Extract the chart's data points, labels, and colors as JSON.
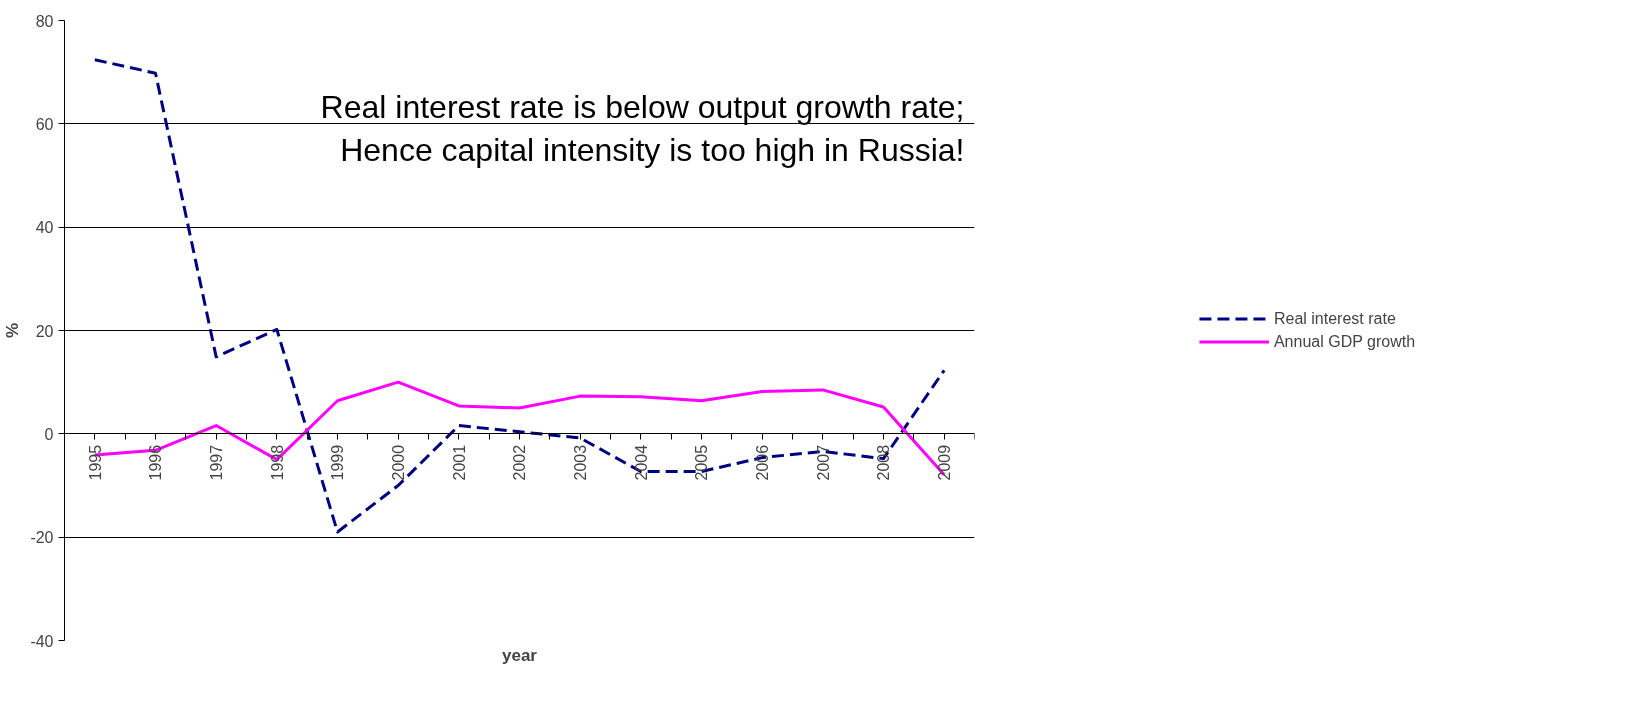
{
  "chart_data": {
    "type": "line",
    "xlabel": "year",
    "ylabel": "%",
    "categories": [
      "1995",
      "1996",
      "1997",
      "1998",
      "1999",
      "2000",
      "2001",
      "2002",
      "2003",
      "2004",
      "2005",
      "2006",
      "2007",
      "2008",
      "2009"
    ],
    "series": [
      {
        "name": "Real interest rate",
        "color": "#000080",
        "line_style": "dashed",
        "values": [
          72.4,
          69.8,
          14.9,
          20.2,
          -19,
          -10,
          1.6,
          0.4,
          -0.8,
          -7.3,
          -7.3,
          -4.6,
          -3.4,
          -4.8,
          12.3
        ]
      },
      {
        "name": "Annual GDP growth",
        "color": "#ff00ff",
        "line_style": "solid",
        "values": [
          -4.1,
          -3.2,
          1.6,
          -5.0,
          6.4,
          10.0,
          5.4,
          5.0,
          7.3,
          7.2,
          6.4,
          8.2,
          8.5,
          5.2,
          -7.9
        ]
      }
    ],
    "ylim": [
      -40,
      80
    ],
    "yticks": [
      -40,
      -20,
      0,
      20,
      40,
      60,
      80
    ],
    "grid": "y",
    "legend": "right",
    "marker": "none",
    "annotations": [
      "Real interest rate is below output growth rate;\nHence capital intensity is too high in Russia!"
    ]
  }
}
